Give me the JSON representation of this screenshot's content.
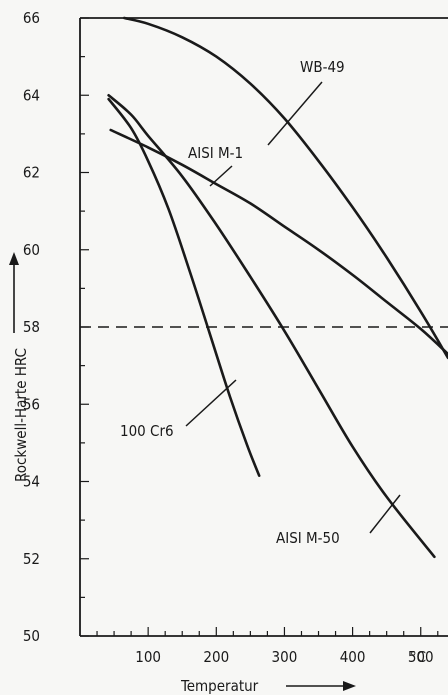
{
  "chart_data": {
    "type": "line",
    "xlabel": "Temperatur",
    "ylabel": "Rockwell-Harte HRC",
    "x_unit": "°C",
    "xlim": [
      0,
      540
    ],
    "ylim": [
      50,
      66
    ],
    "x_ticks": [
      100,
      200,
      300,
      400,
      500
    ],
    "y_ticks": [
      50,
      52,
      54,
      56,
      58,
      60,
      62,
      64,
      66
    ],
    "grid": false,
    "reference_line": {
      "y": 58,
      "style": "dashed"
    },
    "series": [
      {
        "name": "WB-49",
        "x": [
          65,
          100,
          150,
          200,
          250,
          300,
          350,
          400,
          450,
          500,
          540
        ],
        "y": [
          66,
          65.85,
          65.5,
          65.0,
          64.3,
          63.4,
          62.3,
          61.1,
          59.8,
          58.4,
          57.2
        ]
      },
      {
        "name": "AISI M-1",
        "x": [
          45,
          100,
          150,
          200,
          250,
          300,
          350,
          400,
          450,
          500,
          540
        ],
        "y": [
          63.1,
          62.65,
          62.2,
          61.7,
          61.2,
          60.6,
          60.0,
          59.35,
          58.65,
          57.95,
          57.3
        ]
      },
      {
        "name": "AISI M-50",
        "x": [
          42,
          75,
          100,
          150,
          200,
          250,
          300,
          350,
          400,
          450,
          520
        ],
        "y": [
          64.0,
          63.5,
          62.95,
          61.9,
          60.65,
          59.3,
          57.9,
          56.4,
          54.9,
          53.6,
          52.05
        ]
      },
      {
        "name": "100 Cr6",
        "x": [
          42,
          75,
          100,
          130,
          160,
          190,
          220,
          245,
          263
        ],
        "y": [
          63.9,
          63.15,
          62.3,
          61.05,
          59.5,
          57.85,
          56.2,
          54.95,
          54.15
        ]
      }
    ]
  }
}
